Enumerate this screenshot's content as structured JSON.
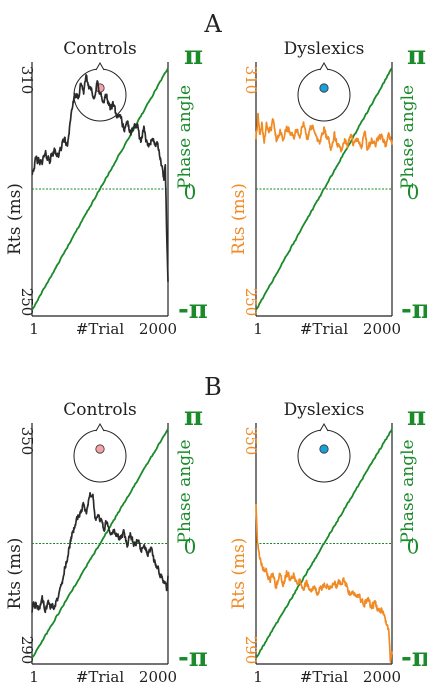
{
  "colors": {
    "controls": "#2b2b2b",
    "dyslexics": "#f08a24",
    "phase": "#1a8a2a",
    "head_controls_dot": "#f4a4a8",
    "head_dyslexics_dot": "#1aa0d8"
  },
  "panel_labels": [
    "A",
    "B"
  ],
  "chart_data": [
    {
      "type": "line",
      "panel": "A",
      "title": "Controls",
      "group": "controls",
      "xlabel": "#Trial",
      "x_ticks": [
        "1",
        "2000"
      ],
      "ylabel": "Rts (ms)",
      "ylim": [
        250,
        310
      ],
      "y_ticks": [
        "250",
        "310"
      ],
      "y2label": "Phase angle",
      "y2_ticks": [
        "-π",
        "0",
        "π"
      ],
      "rt_profile": [
        [
          1,
          284
        ],
        [
          60,
          287
        ],
        [
          120,
          286
        ],
        [
          200,
          288
        ],
        [
          260,
          287
        ],
        [
          330,
          289
        ],
        [
          400,
          288
        ],
        [
          470,
          292
        ],
        [
          520,
          290
        ],
        [
          560,
          296
        ],
        [
          600,
          300
        ],
        [
          640,
          302
        ],
        [
          680,
          301
        ],
        [
          720,
          305
        ],
        [
          760,
          303
        ],
        [
          800,
          306
        ],
        [
          840,
          304
        ],
        [
          880,
          304
        ],
        [
          920,
          301
        ],
        [
          960,
          305
        ],
        [
          1000,
          303
        ],
        [
          1050,
          300
        ],
        [
          1100,
          302
        ],
        [
          1150,
          299
        ],
        [
          1200,
          300
        ],
        [
          1250,
          296
        ],
        [
          1300,
          298
        ],
        [
          1350,
          294
        ],
        [
          1400,
          296
        ],
        [
          1450,
          293
        ],
        [
          1500,
          295
        ],
        [
          1550,
          295
        ],
        [
          1600,
          291
        ],
        [
          1650,
          294
        ],
        [
          1700,
          290
        ],
        [
          1750,
          292
        ],
        [
          1800,
          291
        ],
        [
          1850,
          290
        ],
        [
          1900,
          286
        ],
        [
          1940,
          282
        ],
        [
          1960,
          285
        ],
        [
          1980,
          271
        ],
        [
          2000,
          258
        ]
      ]
    },
    {
      "type": "line",
      "panel": "A",
      "title": "Dyslexics",
      "group": "dyslexics",
      "xlabel": "#Trial",
      "x_ticks": [
        "1",
        "2000"
      ],
      "ylabel": "Rts (ms)",
      "ylim": [
        250,
        310
      ],
      "y_ticks": [
        "250",
        "310"
      ],
      "y2label": "Phase angle",
      "y2_ticks": [
        "-π",
        "0",
        "π"
      ],
      "rt_profile": [
        [
          1,
          292
        ],
        [
          30,
          297
        ],
        [
          60,
          293
        ],
        [
          90,
          296
        ],
        [
          120,
          291
        ],
        [
          160,
          295
        ],
        [
          200,
          293
        ],
        [
          250,
          296
        ],
        [
          300,
          292
        ],
        [
          350,
          294
        ],
        [
          400,
          292
        ],
        [
          450,
          295
        ],
        [
          500,
          293
        ],
        [
          550,
          292
        ],
        [
          600,
          294
        ],
        [
          650,
          293
        ],
        [
          700,
          295
        ],
        [
          750,
          292
        ],
        [
          800,
          294
        ],
        [
          850,
          295
        ],
        [
          900,
          292
        ],
        [
          950,
          291
        ],
        [
          1000,
          294
        ],
        [
          1050,
          292
        ],
        [
          1100,
          290
        ],
        [
          1150,
          293
        ],
        [
          1200,
          291
        ],
        [
          1250,
          289
        ],
        [
          1300,
          292
        ],
        [
          1350,
          290
        ],
        [
          1400,
          292
        ],
        [
          1450,
          290
        ],
        [
          1500,
          292
        ],
        [
          1550,
          290
        ],
        [
          1600,
          293
        ],
        [
          1650,
          289
        ],
        [
          1700,
          292
        ],
        [
          1750,
          290
        ],
        [
          1800,
          292
        ],
        [
          1850,
          293
        ],
        [
          1900,
          290
        ],
        [
          1950,
          292
        ],
        [
          2000,
          291
        ]
      ]
    },
    {
      "type": "line",
      "panel": "B",
      "title": "Controls",
      "group": "controls",
      "xlabel": "#Trial",
      "x_ticks": [
        "1",
        "2000"
      ],
      "ylabel": "Rts (ms)",
      "ylim": [
        290,
        350
      ],
      "y_ticks": [
        "290",
        "350"
      ],
      "y2label": "Phase angle",
      "y2_ticks": [
        "-π",
        "0",
        "π"
      ],
      "rt_profile": [
        [
          1,
          303
        ],
        [
          50,
          305
        ],
        [
          100,
          304
        ],
        [
          150,
          306
        ],
        [
          200,
          304
        ],
        [
          260,
          305
        ],
        [
          320,
          304
        ],
        [
          380,
          307
        ],
        [
          440,
          310
        ],
        [
          500,
          315
        ],
        [
          560,
          320
        ],
        [
          620,
          324
        ],
        [
          680,
          327
        ],
        [
          720,
          328
        ],
        [
          760,
          330
        ],
        [
          800,
          328
        ],
        [
          840,
          331
        ],
        [
          870,
          332
        ],
        [
          900,
          331
        ],
        [
          930,
          326
        ],
        [
          970,
          328
        ],
        [
          1000,
          326
        ],
        [
          1050,
          324
        ],
        [
          1100,
          325
        ],
        [
          1150,
          322
        ],
        [
          1200,
          324
        ],
        [
          1250,
          322
        ],
        [
          1300,
          321
        ],
        [
          1350,
          323
        ],
        [
          1400,
          320
        ],
        [
          1450,
          322
        ],
        [
          1500,
          319
        ],
        [
          1550,
          321
        ],
        [
          1600,
          318
        ],
        [
          1650,
          320
        ],
        [
          1700,
          317
        ],
        [
          1750,
          318
        ],
        [
          1800,
          315
        ],
        [
          1850,
          314
        ],
        [
          1900,
          312
        ],
        [
          1950,
          310
        ],
        [
          1980,
          308
        ],
        [
          2000,
          312
        ]
      ]
    },
    {
      "type": "line",
      "panel": "B",
      "title": "Dyslexics",
      "group": "dyslexics",
      "xlabel": "#Trial",
      "x_ticks": [
        "1",
        "2000"
      ],
      "ylabel": "Rts (ms)",
      "ylim": [
        290,
        350
      ],
      "y_ticks": [
        "290",
        "350"
      ],
      "y2label": "Phase angle",
      "y2_ticks": [
        "-π",
        "0",
        "π"
      ],
      "rt_profile": [
        [
          1,
          330
        ],
        [
          20,
          320
        ],
        [
          60,
          316
        ],
        [
          100,
          314
        ],
        [
          150,
          313
        ],
        [
          200,
          311
        ],
        [
          250,
          312
        ],
        [
          300,
          309
        ],
        [
          350,
          312
        ],
        [
          400,
          310
        ],
        [
          450,
          313
        ],
        [
          500,
          311
        ],
        [
          550,
          312
        ],
        [
          600,
          310
        ],
        [
          650,
          311
        ],
        [
          700,
          309
        ],
        [
          750,
          310
        ],
        [
          800,
          308
        ],
        [
          850,
          309
        ],
        [
          900,
          308
        ],
        [
          950,
          309
        ],
        [
          1000,
          309
        ],
        [
          1050,
          310
        ],
        [
          1100,
          309
        ],
        [
          1150,
          310
        ],
        [
          1200,
          309
        ],
        [
          1250,
          311
        ],
        [
          1300,
          310
        ],
        [
          1350,
          309
        ],
        [
          1400,
          307
        ],
        [
          1450,
          308
        ],
        [
          1500,
          307
        ],
        [
          1550,
          306
        ],
        [
          1600,
          305
        ],
        [
          1650,
          306
        ],
        [
          1700,
          304
        ],
        [
          1750,
          305
        ],
        [
          1800,
          303
        ],
        [
          1850,
          304
        ],
        [
          1900,
          302
        ],
        [
          1950,
          298
        ],
        [
          1980,
          290
        ],
        [
          2000,
          294
        ]
      ]
    }
  ]
}
